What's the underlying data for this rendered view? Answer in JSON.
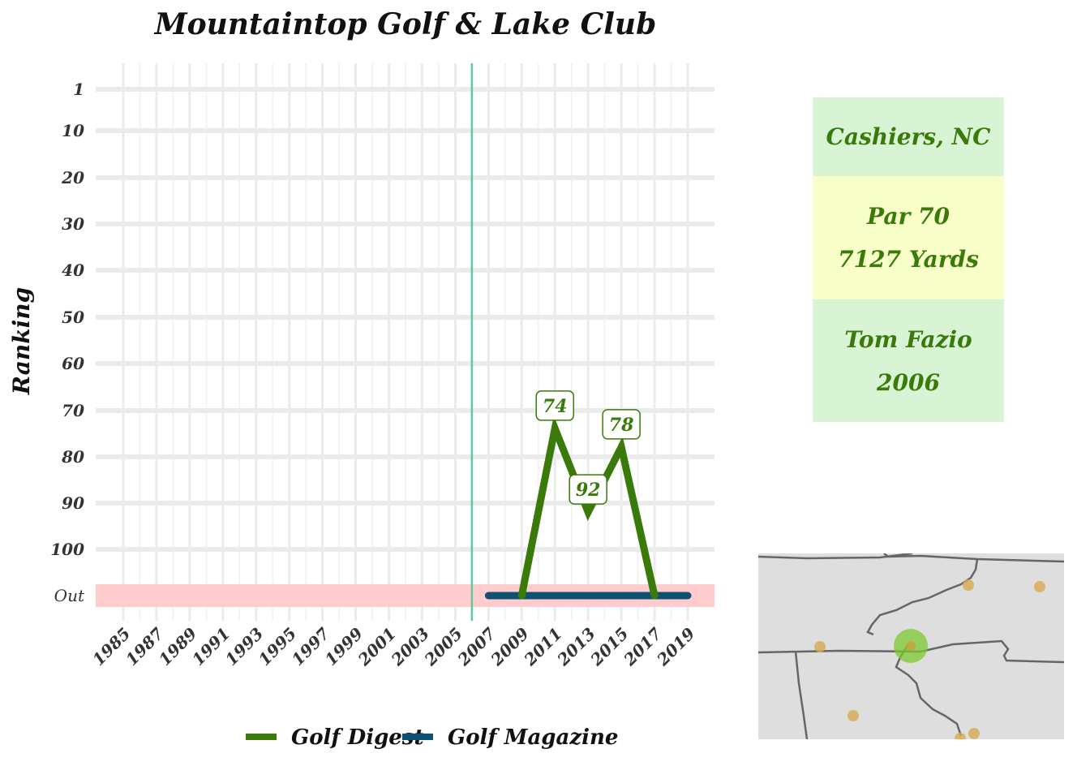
{
  "chart_data": {
    "type": "line",
    "title": "Mountaintop Golf & Lake Club",
    "ylabel": "Ranking",
    "xlabel": "",
    "x_ticks": [
      "1985",
      "1987",
      "1989",
      "1991",
      "1993",
      "1995",
      "1997",
      "1999",
      "2001",
      "2003",
      "2005",
      "2007",
      "2009",
      "2011",
      "2013",
      "2015",
      "2017",
      "2019"
    ],
    "y_ticks": [
      "1",
      "10",
      "20",
      "30",
      "40",
      "50",
      "60",
      "70",
      "80",
      "90",
      "100",
      "Out"
    ],
    "y_reversed": true,
    "out_band_label": "Out",
    "reference_line": {
      "x": 2006
    },
    "series": [
      {
        "name": "Golf Digest",
        "color": "#3a7a0a",
        "points": [
          [
            2009,
            "Out"
          ],
          [
            2011,
            74
          ],
          [
            2013,
            92
          ],
          [
            2015,
            78
          ],
          [
            2017,
            "Out"
          ]
        ]
      },
      {
        "name": "Golf Magazine",
        "color": "#0d5272",
        "points": [
          [
            2007,
            "Out"
          ],
          [
            2009,
            "Out"
          ],
          [
            2011,
            "Out"
          ],
          [
            2013,
            "Out"
          ],
          [
            2015,
            "Out"
          ],
          [
            2017,
            "Out"
          ],
          [
            2019,
            "Out"
          ]
        ]
      }
    ],
    "data_labels": [
      {
        "x": 2011,
        "y": 74,
        "text": "74"
      },
      {
        "x": 2013,
        "y": 92,
        "text": "92"
      },
      {
        "x": 2015,
        "y": 78,
        "text": "78"
      }
    ],
    "grid": true,
    "legend_position": "bottom"
  },
  "info": {
    "location": "Cashiers, NC",
    "par": "Par 70",
    "yards": "7127 Yards",
    "designer": "Tom Fazio",
    "year": "2006"
  },
  "colors": {
    "accent_green": "#3a7a0a",
    "magazine_blue": "#0d5272",
    "out_band": "#ffcdcd",
    "reference_line": "#5fc9a0",
    "box_green": "#d8f4d4",
    "box_yellow": "#f9ffc8",
    "map_land": "#dedede",
    "map_highlight": "#7cc832",
    "map_dot": "#d8a850"
  },
  "map": {
    "highlight_label": "course location",
    "other_points": 6
  }
}
